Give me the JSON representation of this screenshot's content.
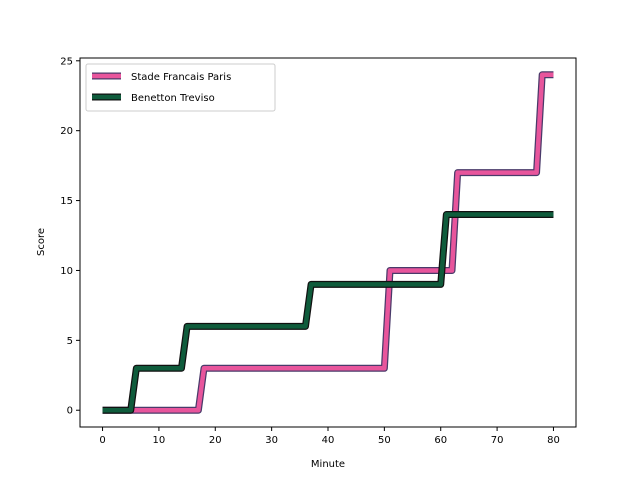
{
  "chart_data": {
    "type": "line",
    "title": "",
    "xlabel": "Minute",
    "ylabel": "Score",
    "xlim": [
      -4,
      84
    ],
    "ylim": [
      -1.2,
      25.2
    ],
    "xticks": [
      0,
      10,
      20,
      30,
      40,
      50,
      60,
      70,
      80
    ],
    "yticks": [
      0,
      5,
      10,
      15,
      20,
      25
    ],
    "grid": false,
    "legend_position": "top-left",
    "series": [
      {
        "name": "Stade Francais Paris",
        "color": "#e8559c",
        "edge_color": "#4a3a6a",
        "points": [
          [
            0,
            0
          ],
          [
            17,
            0
          ],
          [
            18,
            3
          ],
          [
            50,
            3
          ],
          [
            51,
            10
          ],
          [
            62,
            10
          ],
          [
            63,
            17
          ],
          [
            77,
            17
          ],
          [
            78,
            24
          ],
          [
            80,
            24
          ]
        ]
      },
      {
        "name": "Benetton Treviso",
        "color": "#0f5c3c",
        "edge_color": "#111111",
        "points": [
          [
            0,
            0
          ],
          [
            5,
            0
          ],
          [
            6,
            3
          ],
          [
            14,
            3
          ],
          [
            15,
            6
          ],
          [
            36,
            6
          ],
          [
            37,
            9
          ],
          [
            60,
            9
          ],
          [
            61,
            14
          ],
          [
            80,
            14
          ]
        ]
      }
    ]
  }
}
